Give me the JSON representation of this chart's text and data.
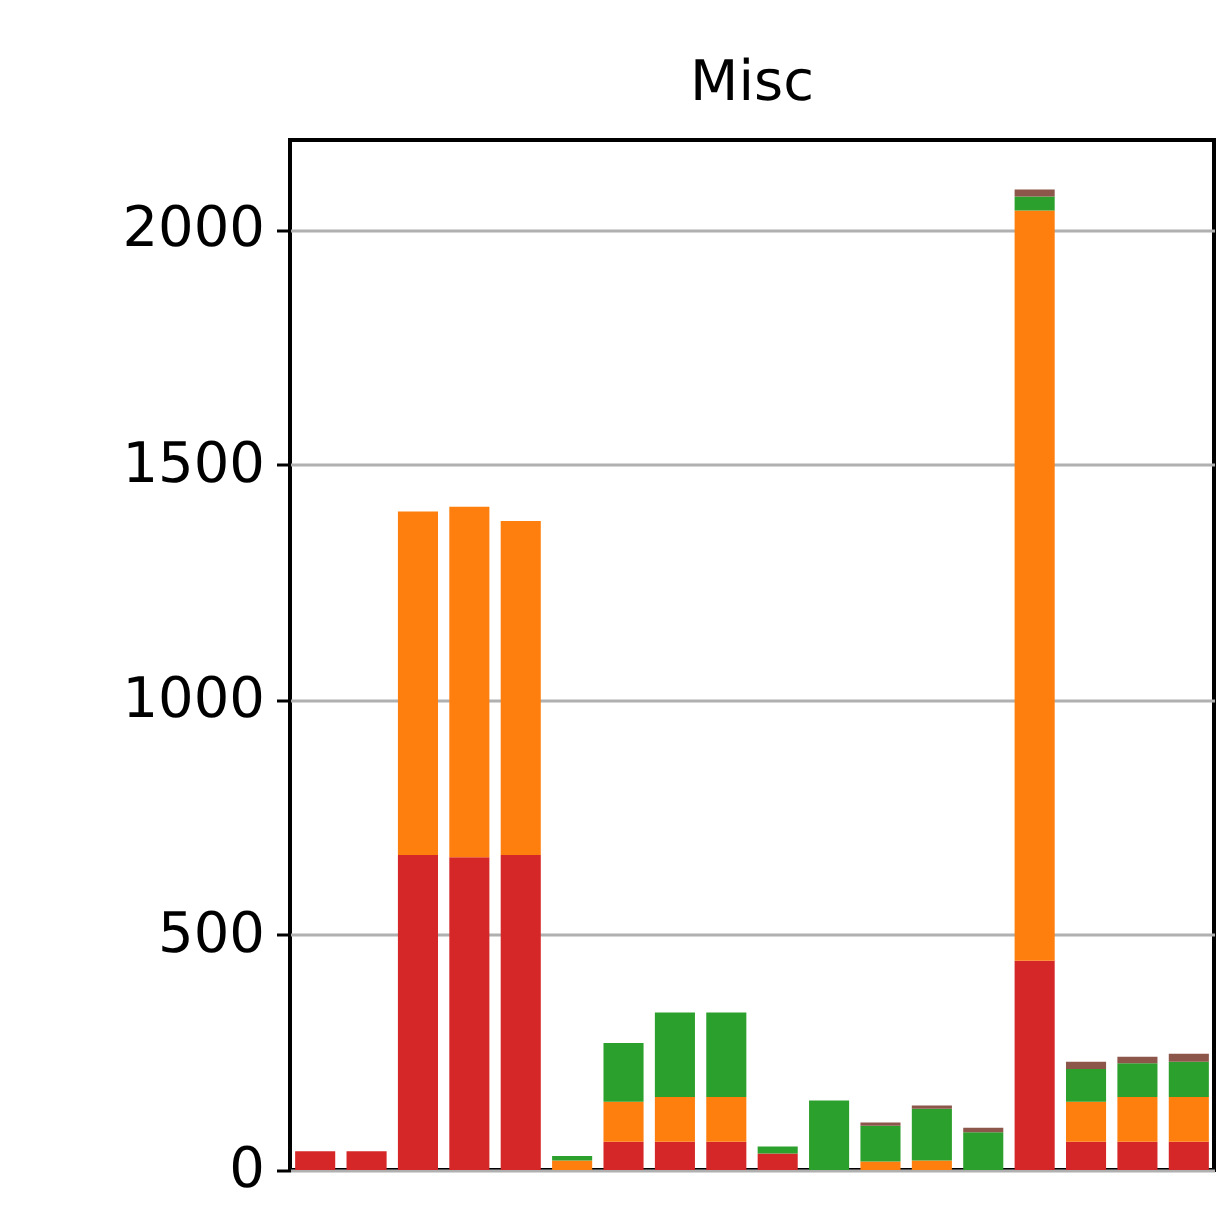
{
  "chart_data": {
    "type": "bar",
    "title": "Misc",
    "stacked": true,
    "categories": [
      null,
      null,
      null,
      null,
      null,
      null,
      null,
      null,
      null,
      null,
      null,
      null,
      null,
      null,
      null,
      null,
      null,
      null
    ],
    "series": [
      {
        "color": "#d62728",
        "values": [
          40,
          40,
          670,
          665,
          670,
          0,
          60,
          60,
          60,
          35,
          0,
          0,
          0,
          0,
          445,
          60,
          60,
          60
        ]
      },
      {
        "color": "#ff7f0e",
        "values": [
          0,
          0,
          730,
          745,
          710,
          20,
          85,
          95,
          95,
          0,
          0,
          18,
          20,
          0,
          1595,
          85,
          95,
          95
        ]
      },
      {
        "color": "#2ca02c",
        "values": [
          0,
          0,
          0,
          0,
          0,
          10,
          125,
          180,
          180,
          15,
          148,
          76,
          110,
          80,
          30,
          70,
          72,
          75
        ]
      },
      {
        "color": "#8c564b",
        "values": [
          0,
          0,
          0,
          0,
          0,
          0,
          0,
          0,
          0,
          0,
          0,
          7,
          7,
          10,
          15,
          15,
          14,
          17
        ]
      }
    ],
    "ylim": [
      0,
      2190
    ],
    "yticks": [
      0,
      500,
      1000,
      1500,
      2000
    ],
    "grid": "y",
    "tick_labels": "y"
  }
}
